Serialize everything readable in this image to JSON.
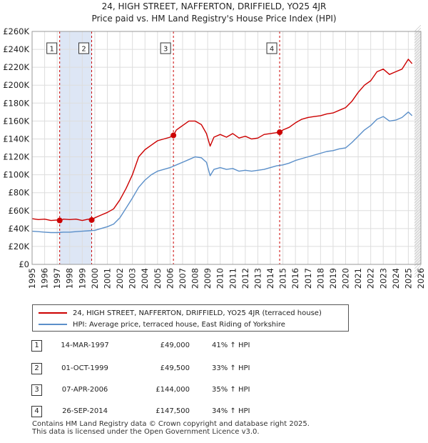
{
  "title_line1": "24, HIGH STREET, NAFFERTON, DRIFFIELD, YO25 4JR",
  "title_line2": "Price paid vs. HM Land Registry's House Price Index (HPI)",
  "colors": {
    "property": "#cc0000",
    "hpi": "#5b8fc9",
    "shade": "#dde6f5",
    "grid": "#dddddd",
    "marker": "#cc0000"
  },
  "legend": {
    "property_label": "24, HIGH STREET, NAFFERTON, DRIFFIELD, YO25 4JR (terraced house)",
    "hpi_label": "HPI: Average price, terraced house, East Riding of Yorkshire"
  },
  "sales": [
    {
      "num": "1",
      "date": "14-MAR-1997",
      "price": "£49,000",
      "pct": "41% ↑ HPI"
    },
    {
      "num": "2",
      "date": "01-OCT-1999",
      "price": "£49,500",
      "pct": "33% ↑ HPI"
    },
    {
      "num": "3",
      "date": "07-APR-2006",
      "price": "£144,000",
      "pct": "35% ↑ HPI"
    },
    {
      "num": "4",
      "date": "26-SEP-2014",
      "price": "£147,500",
      "pct": "34% ↑ HPI"
    }
  ],
  "footer": {
    "line1": "Contains HM Land Registry data © Crown copyright and database right 2025.",
    "line2": "This data is licensed under the Open Government Licence v3.0."
  },
  "chart_data": {
    "type": "line",
    "title": "Price paid vs. HM Land Registry's House Price Index (HPI)",
    "xlim": [
      1995,
      2026
    ],
    "ylim": [
      0,
      260000
    ],
    "x_ticks": [
      1995,
      1996,
      1997,
      1998,
      1999,
      2000,
      2001,
      2002,
      2003,
      2004,
      2005,
      2006,
      2007,
      2008,
      2009,
      2010,
      2011,
      2012,
      2013,
      2014,
      2015,
      2016,
      2017,
      2018,
      2019,
      2020,
      2021,
      2022,
      2023,
      2024,
      2025,
      2026
    ],
    "y_ticks": [
      0,
      20000,
      40000,
      60000,
      80000,
      100000,
      120000,
      140000,
      160000,
      180000,
      200000,
      220000,
      240000,
      260000
    ],
    "y_tick_labels": [
      "£0",
      "£20K",
      "£40K",
      "£60K",
      "£80K",
      "£100K",
      "£120K",
      "£140K",
      "£160K",
      "£180K",
      "£200K",
      "£220K",
      "£240K",
      "£260K"
    ],
    "shaded_ranges": [
      [
        1997.2,
        1999.75
      ]
    ],
    "future_from": 2025.5,
    "series": [
      {
        "name": "24, HIGH STREET, NAFFERTON, DRIFFIELD, YO25 4JR (terraced house)",
        "x": [
          1995.0,
          1995.5,
          1996.0,
          1996.5,
          1997.0,
          1997.2,
          1997.5,
          1998.0,
          1998.5,
          1999.0,
          1999.5,
          1999.75,
          2000.0,
          2000.5,
          2001.0,
          2001.5,
          2002.0,
          2002.5,
          2003.0,
          2003.5,
          2004.0,
          2004.5,
          2005.0,
          2005.5,
          2006.0,
          2006.27,
          2006.5,
          2007.0,
          2007.5,
          2008.0,
          2008.5,
          2008.9,
          2009.2,
          2009.5,
          2010.0,
          2010.5,
          2011.0,
          2011.5,
          2012.0,
          2012.5,
          2013.0,
          2013.5,
          2014.0,
          2014.5,
          2014.74,
          2015.0,
          2015.5,
          2016.0,
          2016.5,
          2017.0,
          2017.5,
          2018.0,
          2018.5,
          2019.0,
          2019.5,
          2020.0,
          2020.5,
          2021.0,
          2021.5,
          2022.0,
          2022.5,
          2023.0,
          2023.5,
          2024.0,
          2024.5,
          2025.0,
          2025.3
        ],
        "values": [
          51000,
          50000,
          50500,
          49000,
          49500,
          49000,
          50500,
          50000,
          50500,
          49000,
          50500,
          49500,
          52000,
          55000,
          58000,
          62000,
          72000,
          85000,
          100000,
          120000,
          128000,
          133000,
          138000,
          140000,
          142000,
          144000,
          150000,
          155000,
          160000,
          160000,
          156000,
          146000,
          132000,
          142000,
          145000,
          142000,
          146000,
          141000,
          143000,
          140000,
          141000,
          145000,
          146000,
          147000,
          147500,
          150000,
          153000,
          158000,
          162000,
          164000,
          165000,
          166000,
          168000,
          169000,
          172000,
          175000,
          182000,
          192000,
          200000,
          205000,
          215000,
          218000,
          212000,
          215000,
          218000,
          229000,
          224000
        ]
      },
      {
        "name": "HPI: Average price, terraced house, East Riding of Yorkshire",
        "x": [
          1995.0,
          1995.5,
          1996.0,
          1996.5,
          1997.0,
          1997.5,
          1998.0,
          1998.5,
          1999.0,
          1999.5,
          2000.0,
          2000.5,
          2001.0,
          2001.5,
          2002.0,
          2002.5,
          2003.0,
          2003.5,
          2004.0,
          2004.5,
          2005.0,
          2005.5,
          2006.0,
          2006.5,
          2007.0,
          2007.5,
          2008.0,
          2008.5,
          2008.9,
          2009.2,
          2009.5,
          2010.0,
          2010.5,
          2011.0,
          2011.5,
          2012.0,
          2012.5,
          2013.0,
          2013.5,
          2014.0,
          2014.5,
          2015.0,
          2015.5,
          2016.0,
          2016.5,
          2017.0,
          2017.5,
          2018.0,
          2018.5,
          2019.0,
          2019.5,
          2020.0,
          2020.5,
          2021.0,
          2021.5,
          2022.0,
          2022.5,
          2023.0,
          2023.5,
          2024.0,
          2024.5,
          2025.0,
          2025.3
        ],
        "values": [
          37000,
          36500,
          36000,
          35500,
          35500,
          36000,
          36000,
          36500,
          37000,
          37500,
          38000,
          40000,
          42000,
          45000,
          52000,
          63000,
          74000,
          86000,
          94000,
          100000,
          104000,
          106000,
          108000,
          111000,
          114000,
          117000,
          120000,
          119000,
          114000,
          99000,
          106000,
          108000,
          106000,
          107000,
          104000,
          105000,
          104000,
          105000,
          106000,
          108000,
          110000,
          111000,
          113000,
          116000,
          118000,
          120000,
          122000,
          124000,
          126000,
          127000,
          129000,
          130000,
          136000,
          143000,
          150000,
          155000,
          162000,
          165000,
          160000,
          161000,
          164000,
          170000,
          166000
        ]
      }
    ],
    "sale_points": [
      {
        "label": "1",
        "x": 1997.2,
        "y": 49000
      },
      {
        "label": "2",
        "x": 1999.75,
        "y": 49500
      },
      {
        "label": "3",
        "x": 2006.27,
        "y": 144000
      },
      {
        "label": "4",
        "x": 2014.74,
        "y": 147500
      }
    ]
  }
}
